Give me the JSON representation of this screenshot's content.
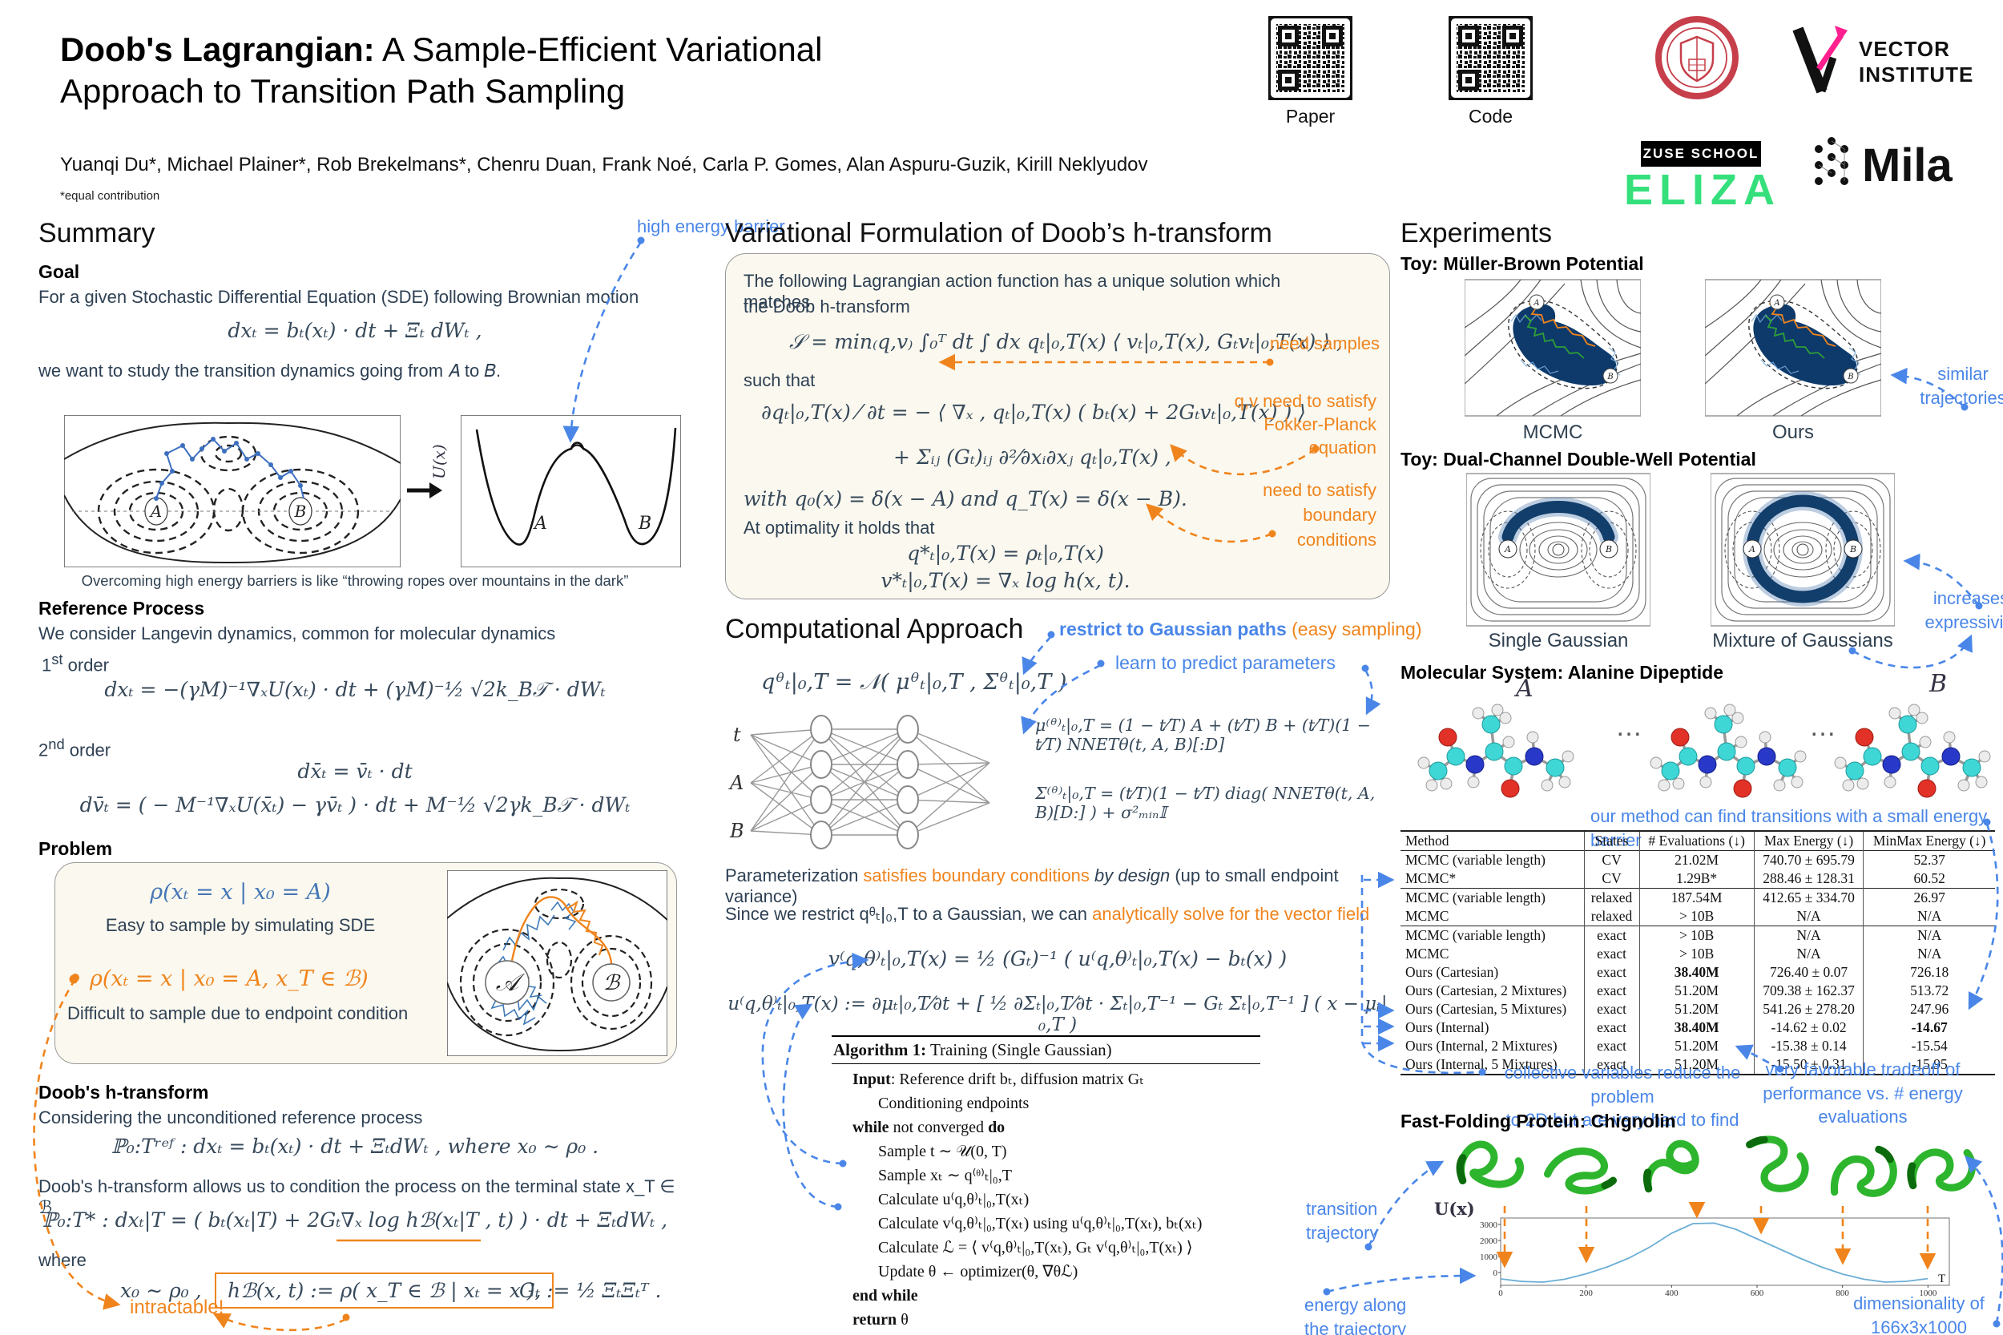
{
  "header": {
    "title_bold": "Doob's Lagrangian:",
    "title_rest": " A Sample-Efficient Variational",
    "title_line2": "Approach to Transition Path Sampling",
    "authors": "Yuanqi Du*, Michael Plainer*, Rob Brekelmans*, Chenru Duan, Frank Noé, Carla P. Gomes, Alan Aspuru-Guzik, Kirill Neklyudov",
    "footnote": "*equal contribution",
    "qr_paper_label": "Paper",
    "qr_code_label": "Code",
    "logos": {
      "vector_line1": "VECTOR",
      "vector_line2": "INSTITUTE",
      "zuse": "ZUSE SCHOOL",
      "eliza": "ELIZA",
      "mila": "Mila"
    }
  },
  "colors": {
    "accent_blue": "#4a86e8",
    "accent_orange": "#f0841c",
    "equation_blue": "#4576b5",
    "navy_density": "#0e3a6b",
    "protein_green": "#2db52d",
    "box_background": "#faf8ef"
  },
  "summary": {
    "heading": "Summary",
    "goal_heading": "Goal",
    "goal_text": "For a given Stochastic Differential Equation (SDE) following Brownian motion",
    "eq_sde": "dxₜ = bₜ(xₜ) · dt + Ξₜ dWₜ ,",
    "study_text": "we want to study the transition dynamics going from 𝐴 to 𝐵.",
    "ann_high_energy": "high energy barrier",
    "fig_labels": {
      "a": "A",
      "b": "B",
      "u": "U(x)"
    },
    "fig_caption": "Overcoming high energy barriers is like “throwing ropes over mountains in the dark”",
    "ref_heading": "Reference Process",
    "ref_text": "We consider Langevin dynamics, common for molecular dynamics",
    "order1_num": "1",
    "order1_sup": "st",
    "order1_word": " order",
    "eq_first": "dxₜ = −(γM)⁻¹∇ₓU(xₜ) · dt + (γM)⁻½ √2k_B𝒯 · dWₜ",
    "order2_num": "2",
    "order2_sup": "nd",
    "order2_word": " order",
    "eq_second_a": "dx̄ₜ  = v̄ₜ · dt",
    "eq_second_b": "dv̄ₜ  = ( − M⁻¹∇ₓU(x̄ₜ) − γv̄ₜ ) · dt + M⁻½ √2γk_B𝒯 · dWₜ",
    "problem_heading": "Problem",
    "problem": {
      "eq_blue": "ρ(xₜ = x | x₀ = A)",
      "blue_caption": "Easy to sample by simulating SDE",
      "eq_orange": "ρ(xₜ = x | x₀ = A, x_T ∈ ℬ)",
      "orange_caption": "Difficult to sample due to endpoint condition",
      "basin_a": "𝒜",
      "basin_b": "ℬ"
    },
    "doob_heading": "Doob's h-transform",
    "doob_text1": "Considering the unconditioned reference process",
    "eq_ref": "ℙ₀:Tʳᵉᶠ :     dxₜ = bₜ(xₜ) · dt + ΞₜdWₜ ,   where   x₀ ∼ ρ₀ .",
    "doob_text2": "Doob's h-transform allows us to condition the process on the terminal state x_T ∈ ℬ",
    "eq_doob": "ℙ₀:T* : dxₜ|T = ( bₜ(xₜ|T) + 2Gₜ∇ₓ log hℬ(xₜ|T , t) ) · dt + ΞₜdWₜ ,",
    "where_label": "where",
    "eq_x0": "x₀ ∼ ρ₀ ,",
    "eq_hb": "hℬ(x, t) := ρ( x_T ∈ ℬ | xₜ = x ),",
    "eq_gt": "Gₜ := ½ ΞₜΞₜᵀ .",
    "intractable": "intractable!"
  },
  "variational": {
    "heading": "Variational Formulation of Doob’s h-transform",
    "intro_line1": "The following Lagrangian action function has a unique solution which matches",
    "intro_line2": "the Doob h-transform",
    "eq_action": "𝒮 = min₍q,v₎ ∫₀ᵀ dt ∫ dx  qₜ|₀,T(x) ⟨ vₜ|₀,T(x), Gₜvₜ|₀,T(x) ⟩ ,",
    "ann_samples": "need samples",
    "such_that": "such that",
    "eq_fp1": "∂qₜ|₀,T(x) ⁄ ∂t = − ⟨ ∇ₓ , qₜ|₀,T(x) ( bₜ(x) + 2Gₜvₜ|₀,T(x) ) ⟩",
    "eq_fp2": "+ Σᵢⱼ (Gₜ)ᵢⱼ  ∂²⁄∂xᵢ∂xⱼ  qₜ|₀,T(x) ,",
    "ann_fp": [
      "q,v need to satisfy",
      "Fokker-Planck",
      "equation"
    ],
    "eq_bc": "with   q₀(x) = δ(x − A)   and   q_T(x) = δ(x − B).",
    "opt_text": "At optimality it holds that",
    "eq_opt1": "q*ₜ|₀,T(x) = ρₜ|₀,T(x)",
    "eq_opt2": "v*ₜ|₀,T(x) = ∇ₓ log h(x, t).",
    "ann_bc": [
      "need to satisfy",
      "boundary",
      "conditions"
    ]
  },
  "computational": {
    "heading": "Computational Approach",
    "ann_restrict_bold": "restrict to Gaussian paths",
    "ann_restrict_rest": " (easy sampling)",
    "ann_learn": "learn to predict parameters",
    "eq_q": "qᶿₜ|₀,T = 𝒩( μᶿₜ|₀,T , Σᶿₜ|₀,T )",
    "nn_inputs": [
      "t",
      "A",
      "B"
    ],
    "eq_mu": "μ⁽ᶿ⁾ₜ|₀,T = (1 − t⁄T) A + (t⁄T) B + (t⁄T)(1 − t⁄T) NNETθ(t, A, B)[:D]",
    "eq_sigma": "Σ⁽ᶿ⁾ₜ|₀,T = (t⁄T)(1 − t⁄T) diag( NNETθ(t, A, B)[D:] ) + σ²ₘᵢₙ𝕀",
    "param_p1": "Parameterization ",
    "param_p2": "satisfies boundary conditions",
    "param_p3": " by design",
    "param_p4": " (up to small endpoint variance)",
    "since_p1": "Since we restrict qᶿₜ|₀,T to a Gaussian, we can ",
    "since_p2": "analytically solve for the vector field",
    "eq_v": "v⁽q,θ⁾ₜ|₀,T(x) = ½ (Gₜ)⁻¹ ( u⁽q,θ⁾ₜ|₀,T(x) − bₜ(x) )",
    "eq_u": "u⁽q,θ⁾ₜ|₀,T(x) := ∂μₜ|₀,T⁄∂t + [ ½ ∂Σₜ|₀,T⁄∂t · Σₜ|₀,T⁻¹ − Gₜ Σₜ|₀,T⁻¹ ] ( x − μₜ|₀,T )"
  },
  "algorithm": {
    "title_bold": "Algorithm 1:",
    "title_rest": " Training (Single Gaussian)",
    "lines": [
      {
        "text": "**Input**: Reference drift bₜ, diffusion matrix Gₜ",
        "ind": 1
      },
      {
        "text": "Conditioning endpoints",
        "ind": 2
      },
      {
        "text": "**while** not converged **do**",
        "ind": 1
      },
      {
        "text": "Sample t ∼ 𝒰(0, T)",
        "ind": 2
      },
      {
        "text": "Sample xₜ ∼ q⁽ᶿ⁾ₜ|₀,T",
        "ind": 2
      },
      {
        "text": "Calculate u⁽q,θ⁾ₜ|₀,T(xₜ)",
        "ind": 2
      },
      {
        "text": "Calculate v⁽q,θ⁾ₜ|₀,T(xₜ) using u⁽q,θ⁾ₜ|₀,T(xₜ), bₜ(xₜ)",
        "ind": 2
      },
      {
        "text": "Calculate ℒ = ⟨ v⁽q,θ⁾ₜ|₀,T(xₜ), Gₜ v⁽q,θ⁾ₜ|₀,T(xₜ) ⟩",
        "ind": 2
      },
      {
        "text": "Update θ ← optimizer(θ, ∇θℒ)",
        "ind": 2
      },
      {
        "text": "**end while**",
        "ind": 1
      },
      {
        "text": "**return**  θ",
        "ind": 1
      }
    ]
  },
  "experiments": {
    "heading": "Experiments",
    "mb": {
      "title": "Toy: Müller-Brown Potential",
      "captions": [
        "MCMC",
        "Ours"
      ],
      "ann": [
        "similar",
        "trajectories"
      ],
      "label_a": "A",
      "label_b": "B"
    },
    "dw": {
      "title": "Toy: Dual-Channel Double-Well Potential",
      "captions": [
        "Single Gaussian",
        "Mixture of Gaussians"
      ],
      "ann": [
        "increases",
        "expressivity"
      ],
      "label_a": "A",
      "label_b": "B"
    },
    "ala": {
      "title": "Molecular System: Alanine Dipeptide",
      "label_a": "A",
      "label_b": "B",
      "dots": "…",
      "ann": "our method can find transitions with a small energy barrier"
    },
    "table": {
      "headers": [
        "Method",
        "States",
        "# Evaluations (↓)",
        "Max Energy (↓)",
        "MinMax Energy (↓)"
      ],
      "rows": [
        {
          "cells": [
            "MCMC (variable length)",
            "CV",
            "21.02M",
            "740.70 ± 695.79",
            "52.37"
          ]
        },
        {
          "cells": [
            "MCMC*",
            "CV",
            "1.29B*",
            "288.46 ± 128.31",
            "60.52"
          ]
        },
        {
          "cells": [
            "MCMC (variable length)",
            "relaxed",
            "187.54M",
            "412.65 ± 334.70",
            "26.97"
          ],
          "sep": true
        },
        {
          "cells": [
            "MCMC",
            "relaxed",
            "> 10B",
            "N/A",
            "N/A"
          ]
        },
        {
          "cells": [
            "MCMC (variable length)",
            "exact",
            "> 10B",
            "N/A",
            "N/A"
          ],
          "sep": true
        },
        {
          "cells": [
            "MCMC",
            "exact",
            "> 10B",
            "N/A",
            "N/A"
          ]
        },
        {
          "cells": [
            "Ours (Cartesian)",
            "exact",
            "38.40M",
            "726.40 ± 0.07",
            "726.18"
          ],
          "bold": [
            2
          ]
        },
        {
          "cells": [
            "Ours (Cartesian, 2 Mixtures)",
            "exact",
            "51.20M",
            "709.38 ± 162.37",
            "513.72"
          ]
        },
        {
          "cells": [
            "Ours (Cartesian, 5 Mixtures)",
            "exact",
            "51.20M",
            "541.26 ± 278.20",
            "247.96"
          ]
        },
        {
          "cells": [
            "Ours (Internal)",
            "exact",
            "38.40M",
            "-14.62 ± 0.02",
            "-14.67"
          ],
          "bold": [
            2,
            4
          ]
        },
        {
          "cells": [
            "Ours (Internal, 2 Mixtures)",
            "exact",
            "51.20M",
            "-15.38 ± 0.14",
            "-15.54"
          ]
        },
        {
          "cells": [
            "Ours (Internal, 5 Mixtures)",
            "exact",
            "51.20M",
            "-15.50 ± 0.31",
            "-15.95"
          ]
        }
      ]
    },
    "ann_cv": [
      "collective variables reduce the problem",
      "to 2D but are very hard to find"
    ],
    "ann_tradeoff": [
      "very favorable tradeoff of",
      "performance vs. # energy evaluations"
    ],
    "chig": {
      "title": "Fast-Folding Protein: Chignolin",
      "ann_transition": [
        "transition",
        "trajectory"
      ],
      "ann_energy": [
        "energy along",
        "the trajectory"
      ],
      "ann_dim": [
        "dimensionality of",
        "166x3x1000"
      ],
      "plot": {
        "ylabel": "U(x)",
        "xlabel_end": "T"
      }
    }
  },
  "chart_data": {
    "type": "line",
    "title": "Energy along the Chignolin transition trajectory",
    "xlabel": "T",
    "ylabel": "U(x)",
    "x": [
      0,
      50,
      100,
      150,
      200,
      250,
      300,
      350,
      400,
      450,
      500,
      550,
      600,
      650,
      700,
      750,
      800,
      850,
      900,
      950,
      1000
    ],
    "y": [
      -400,
      -560,
      -600,
      -420,
      -80,
      350,
      900,
      1600,
      2450,
      3050,
      3080,
      2700,
      2100,
      1500,
      900,
      350,
      -100,
      -420,
      -600,
      -550,
      -380
    ],
    "xlim": [
      0,
      1050
    ],
    "ylim": [
      -800,
      3400
    ],
    "xticks": [
      0,
      200,
      400,
      600,
      800,
      1000
    ],
    "yticks": [
      3000,
      2000,
      1000,
      0
    ],
    "grid": false,
    "legend": null
  }
}
